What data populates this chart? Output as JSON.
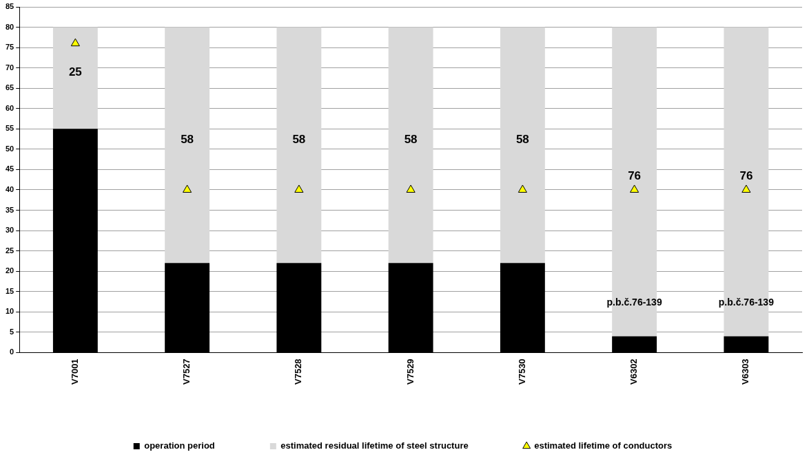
{
  "chart_data": {
    "type": "bar",
    "stacked": true,
    "categories": [
      "V7001",
      "V7527",
      "V7528",
      "V7529",
      "V7530",
      "V6302",
      "V6303"
    ],
    "series": [
      {
        "name": "operation period",
        "color": "#000000",
        "values": [
          55,
          22,
          22,
          22,
          22,
          4,
          4
        ]
      },
      {
        "name": "estimated residual lifetime of steel structure",
        "color": "#d9d9d9",
        "values": [
          25,
          58,
          58,
          58,
          58,
          76,
          76
        ],
        "value_labels": [
          "25",
          "58",
          "58",
          "58",
          "58",
          "76",
          "76"
        ]
      },
      {
        "name": "estimated lifetime of conductors",
        "type": "scatter",
        "marker": "triangle",
        "color": "#ffff00",
        "values": [
          76,
          40,
          40,
          40,
          40,
          40,
          40
        ]
      }
    ],
    "ylim": [
      0,
      85
    ],
    "yticks": [
      0,
      5,
      10,
      15,
      20,
      25,
      30,
      35,
      40,
      45,
      50,
      55,
      60,
      65,
      70,
      75,
      80,
      85
    ],
    "grid": "y",
    "legend": "bottom",
    "annotations": [
      "p.b.č.76-139",
      "p.b.č.76-139"
    ]
  }
}
